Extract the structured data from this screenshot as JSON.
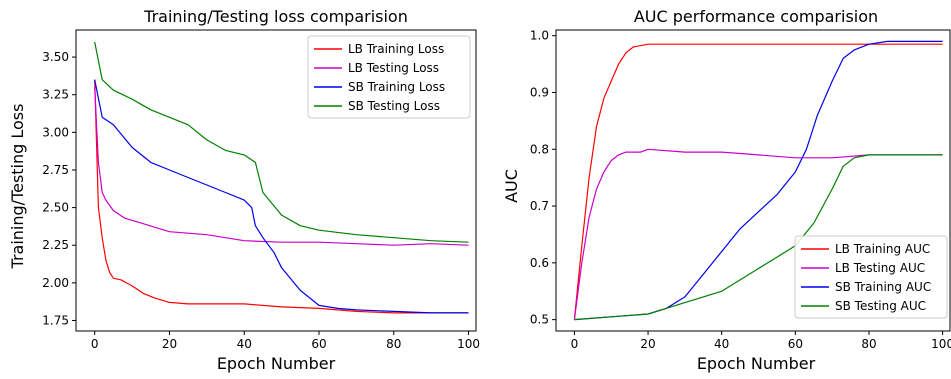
{
  "chart_data": [
    {
      "type": "line",
      "title": "Training/Testing loss comparision",
      "xlabel": "Epoch Number",
      "ylabel": "Training/Testing Loss",
      "xlim": [
        -5,
        102
      ],
      "ylim": [
        1.68,
        3.68
      ],
      "xticks": [
        0,
        20,
        40,
        60,
        80,
        100
      ],
      "yticks": [
        1.75,
        2.0,
        2.25,
        2.5,
        2.75,
        3.0,
        3.25,
        3.5
      ],
      "ytick_labels": [
        "1.75",
        "2.00",
        "2.25",
        "2.50",
        "2.75",
        "3.00",
        "3.25",
        "3.50"
      ],
      "legend_position": "top-right",
      "series": [
        {
          "name": "LB Training Loss",
          "color": "#ff0000",
          "x": [
            0,
            1,
            2,
            3,
            4,
            5,
            7,
            10,
            13,
            16,
            20,
            25,
            30,
            35,
            40,
            45,
            50,
            60,
            70,
            80,
            90,
            100
          ],
          "y": [
            3.35,
            2.5,
            2.3,
            2.15,
            2.07,
            2.03,
            2.02,
            1.98,
            1.93,
            1.9,
            1.87,
            1.86,
            1.86,
            1.86,
            1.86,
            1.85,
            1.84,
            1.83,
            1.81,
            1.8,
            1.8,
            1.8
          ]
        },
        {
          "name": "LB Testing Loss",
          "color": "#cc00cc",
          "x": [
            0,
            1,
            2,
            3,
            5,
            8,
            12,
            16,
            20,
            30,
            40,
            50,
            60,
            70,
            80,
            90,
            100
          ],
          "y": [
            3.3,
            2.8,
            2.6,
            2.55,
            2.48,
            2.43,
            2.4,
            2.37,
            2.34,
            2.32,
            2.28,
            2.27,
            2.27,
            2.26,
            2.25,
            2.26,
            2.25
          ]
        },
        {
          "name": "SB Training Loss",
          "color": "#0000ee",
          "x": [
            0,
            2,
            5,
            10,
            15,
            20,
            25,
            30,
            35,
            40,
            42,
            43,
            45,
            48,
            50,
            55,
            60,
            65,
            70,
            80,
            90,
            100
          ],
          "y": [
            3.35,
            3.1,
            3.05,
            2.9,
            2.8,
            2.75,
            2.7,
            2.65,
            2.6,
            2.55,
            2.5,
            2.38,
            2.3,
            2.2,
            2.1,
            1.95,
            1.85,
            1.83,
            1.82,
            1.81,
            1.8,
            1.8
          ]
        },
        {
          "name": "SB Testing Loss",
          "color": "#008000",
          "x": [
            0,
            2,
            5,
            10,
            15,
            20,
            25,
            30,
            35,
            40,
            43,
            45,
            50,
            55,
            60,
            70,
            80,
            90,
            100
          ],
          "y": [
            3.6,
            3.35,
            3.28,
            3.22,
            3.15,
            3.1,
            3.05,
            2.95,
            2.88,
            2.85,
            2.8,
            2.6,
            2.45,
            2.38,
            2.35,
            2.32,
            2.3,
            2.28,
            2.27
          ]
        }
      ]
    },
    {
      "type": "line",
      "title": "AUC performance comparision",
      "xlabel": "Epoch Number",
      "ylabel": "AUC",
      "xlim": [
        -5,
        102
      ],
      "ylim": [
        0.48,
        1.01
      ],
      "xticks": [
        0,
        20,
        40,
        60,
        80,
        100
      ],
      "yticks": [
        0.5,
        0.6,
        0.7,
        0.8,
        0.9,
        1.0
      ],
      "ytick_labels": [
        "0.5",
        "0.6",
        "0.7",
        "0.8",
        "0.9",
        "1.0"
      ],
      "legend_position": "bottom-right",
      "series": [
        {
          "name": "LB Training AUC",
          "color": "#ff0000",
          "x": [
            0,
            2,
            4,
            6,
            8,
            10,
            12,
            14,
            16,
            20,
            30,
            40,
            60,
            80,
            100
          ],
          "y": [
            0.5,
            0.63,
            0.75,
            0.84,
            0.89,
            0.92,
            0.95,
            0.97,
            0.98,
            0.985,
            0.985,
            0.985,
            0.985,
            0.985,
            0.985
          ]
        },
        {
          "name": "LB Testing AUC",
          "color": "#cc00cc",
          "x": [
            0,
            2,
            4,
            6,
            8,
            10,
            12,
            14,
            18,
            20,
            30,
            40,
            50,
            60,
            70,
            80,
            90,
            100
          ],
          "y": [
            0.5,
            0.6,
            0.68,
            0.73,
            0.76,
            0.78,
            0.79,
            0.795,
            0.795,
            0.8,
            0.795,
            0.795,
            0.79,
            0.785,
            0.785,
            0.79,
            0.79,
            0.79
          ]
        },
        {
          "name": "SB Training AUC",
          "color": "#0000ee",
          "x": [
            0,
            10,
            20,
            25,
            30,
            35,
            40,
            45,
            50,
            55,
            60,
            63,
            66,
            70,
            73,
            76,
            80,
            85,
            90,
            100
          ],
          "y": [
            0.5,
            0.505,
            0.51,
            0.52,
            0.54,
            0.58,
            0.62,
            0.66,
            0.69,
            0.72,
            0.76,
            0.8,
            0.86,
            0.92,
            0.96,
            0.975,
            0.985,
            0.99,
            0.99,
            0.99
          ]
        },
        {
          "name": "SB Testing AUC",
          "color": "#008000",
          "x": [
            0,
            10,
            20,
            25,
            30,
            35,
            40,
            45,
            50,
            55,
            60,
            65,
            70,
            73,
            76,
            80,
            90,
            100
          ],
          "y": [
            0.5,
            0.505,
            0.51,
            0.52,
            0.53,
            0.54,
            0.55,
            0.57,
            0.59,
            0.61,
            0.63,
            0.67,
            0.73,
            0.77,
            0.785,
            0.79,
            0.79,
            0.79
          ]
        }
      ]
    }
  ]
}
